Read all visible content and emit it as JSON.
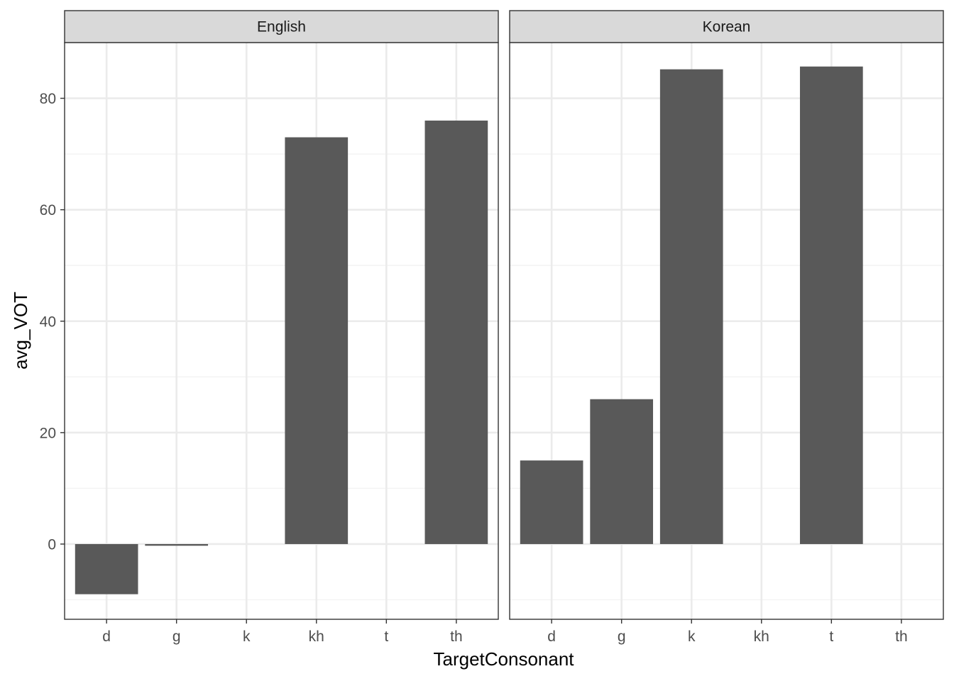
{
  "chart_data": {
    "type": "bar",
    "xlabel": "TargetConsonant",
    "ylabel": "avg_VOT",
    "categories": [
      "d",
      "g",
      "k",
      "kh",
      "t",
      "th"
    ],
    "ylim": [
      -13.5,
      90
    ],
    "yticks": [
      0,
      20,
      40,
      60,
      80
    ],
    "grid": true,
    "panels": [
      {
        "label": "English",
        "values": [
          -9,
          -0.3,
          null,
          73,
          null,
          76
        ]
      },
      {
        "label": "Korean",
        "values": [
          15,
          26,
          85.2,
          null,
          85.7,
          null
        ]
      }
    ]
  }
}
